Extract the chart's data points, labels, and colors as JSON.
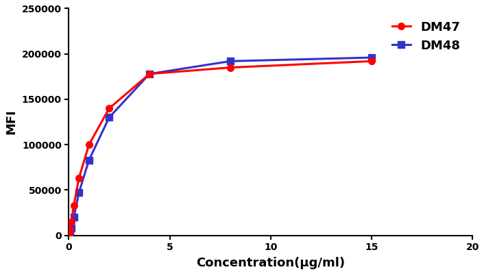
{
  "dm47_x": [
    0.0,
    0.06,
    0.12,
    0.25,
    0.5,
    1.0,
    2.0,
    4.0,
    8.0,
    15.0
  ],
  "dm47_y": [
    0,
    5000,
    15000,
    33000,
    63000,
    100000,
    140000,
    178000,
    185000,
    192000
  ],
  "dm48_x": [
    0.0,
    0.06,
    0.12,
    0.25,
    0.5,
    1.0,
    2.0,
    4.0,
    8.0,
    15.0
  ],
  "dm48_y": [
    0,
    2000,
    8000,
    20000,
    47000,
    83000,
    130000,
    178000,
    192000,
    196000
  ],
  "dm47_color": "#FF0000",
  "dm48_color": "#3333CC",
  "dm47_label": "DM47",
  "dm48_label": "DM48",
  "xlabel": "Concentration(μg/ml)",
  "ylabel": "MFI",
  "xlim": [
    0,
    20
  ],
  "ylim": [
    0,
    250000
  ],
  "xticks": [
    0,
    5,
    10,
    15,
    20
  ],
  "yticks": [
    0,
    50000,
    100000,
    150000,
    200000,
    250000
  ],
  "ytick_labels": [
    "0",
    "50000",
    "100000",
    "150000",
    "200000",
    "250000"
  ],
  "linewidth": 2.2,
  "markersize": 7
}
